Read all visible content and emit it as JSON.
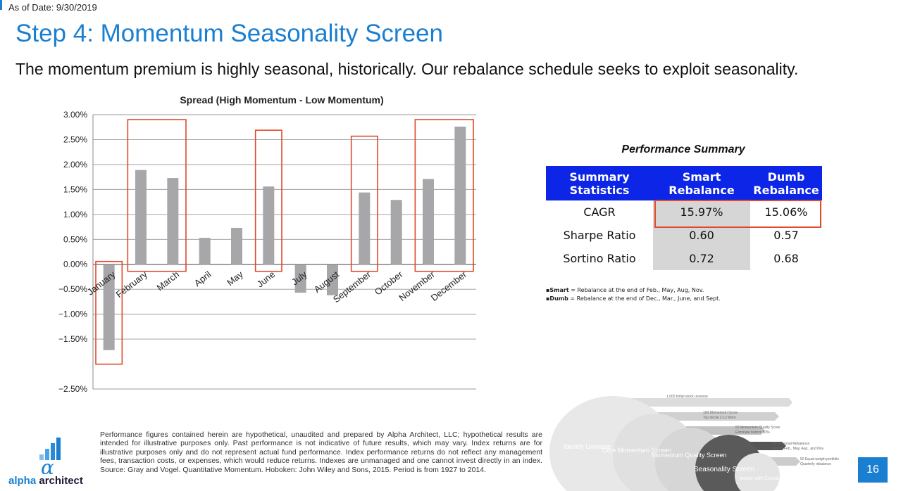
{
  "header": {
    "as_of": "As of Date: 9/30/2019",
    "title": "Step 4: Momentum Seasonality Screen",
    "subtitle": "The momentum premium is highly seasonal, historically. Our rebalance schedule seeks to exploit seasonality."
  },
  "chart_data": {
    "type": "bar",
    "title": "Spread (High Momentum - Low Momentum)",
    "xlabel": "",
    "ylabel": "",
    "categories": [
      "January",
      "February",
      "March",
      "April",
      "May",
      "June",
      "July",
      "August",
      "September",
      "October",
      "November",
      "December"
    ],
    "values": [
      -1.72,
      1.89,
      1.73,
      0.53,
      0.73,
      1.56,
      -0.57,
      -0.62,
      1.44,
      1.29,
      1.71,
      2.76
    ],
    "ylim": [
      -2.5,
      3.0
    ],
    "yticks": [
      3.0,
      2.5,
      2.0,
      1.5,
      1.0,
      0.5,
      0.0,
      -0.5,
      -1.0,
      -1.5,
      -2.5
    ],
    "ytick_labels": [
      "3.00%",
      "2.50%",
      "2.00%",
      "1.50%",
      "1.00%",
      "0.50%",
      "0.00%",
      "−0.50%",
      "−1.00%",
      "−1.50%",
      "−2.50%"
    ],
    "bar_color": "#a7a7aa",
    "highlighted_groups": [
      [
        "January"
      ],
      [
        "February",
        "March"
      ],
      [
        "June"
      ],
      [
        "September"
      ],
      [
        "November",
        "December"
      ]
    ],
    "highlight_color": "#e04a2a",
    "grid": true
  },
  "performance": {
    "title": "Performance Summary",
    "headers": [
      "Summary Statistics",
      "Smart Rebalance",
      "Dumb Rebalance"
    ],
    "rows": [
      {
        "label": "CAGR",
        "smart": "15.97%",
        "dumb": "15.06%"
      },
      {
        "label": "Sharpe Ratio",
        "smart": "0.60",
        "dumb": "0.57"
      },
      {
        "label": "Sortino Ratio",
        "smart": "0.72",
        "dumb": "0.68"
      }
    ],
    "header_color": "#0d25e6",
    "notes": {
      "smart_key": "▪Smart",
      "smart_text": " = Rebalance at the end of Feb., May, Aug, Nov.",
      "dumb_key": "▪Dumb",
      "dumb_text": " = Rebalance at the end of Dec., Mar., June, and Sept."
    }
  },
  "disclaimer": "Performance figures contained herein are hypothetical, unaudited and prepared by Alpha Architect, LLC; hypothetical results are intended for illustrative purposes only. Past performance is not indicative of future results, which may vary. Index returns are for illustrative purposes only and do not represent actual fund performance. Index performance returns do not reflect any management fees, transaction costs, or expenses, which would reduce returns. Indexes are unmanaged and one cannot invest directly in an index. Source: Gray and Vogel. Quantitative Momentum. Hoboken: John Wiley and Sons, 2015. Period is from 1927 to 2014.",
  "logo": {
    "alpha": "alpha",
    "architect": " architect"
  },
  "funnel": {
    "labels": [
      "Identify Universe",
      "Core Momentum Screen",
      "Momentum Quality Screen",
      "Seasonality Screen",
      "Invest with Conviction"
    ],
    "callouts": [
      "1,000 Initial stock universe",
      "100 Momentum Score",
      "Top decile 2-12 Mom",
      "50 Momentum Quality Score",
      "Eliminate bottom 50%",
      "50 Seasonal Rebalance",
      "Ending Feb., May, Aug., and Nov.",
      "50 Equal-weight portfolio",
      "Quarterly rebalance"
    ]
  },
  "page_number": "16"
}
